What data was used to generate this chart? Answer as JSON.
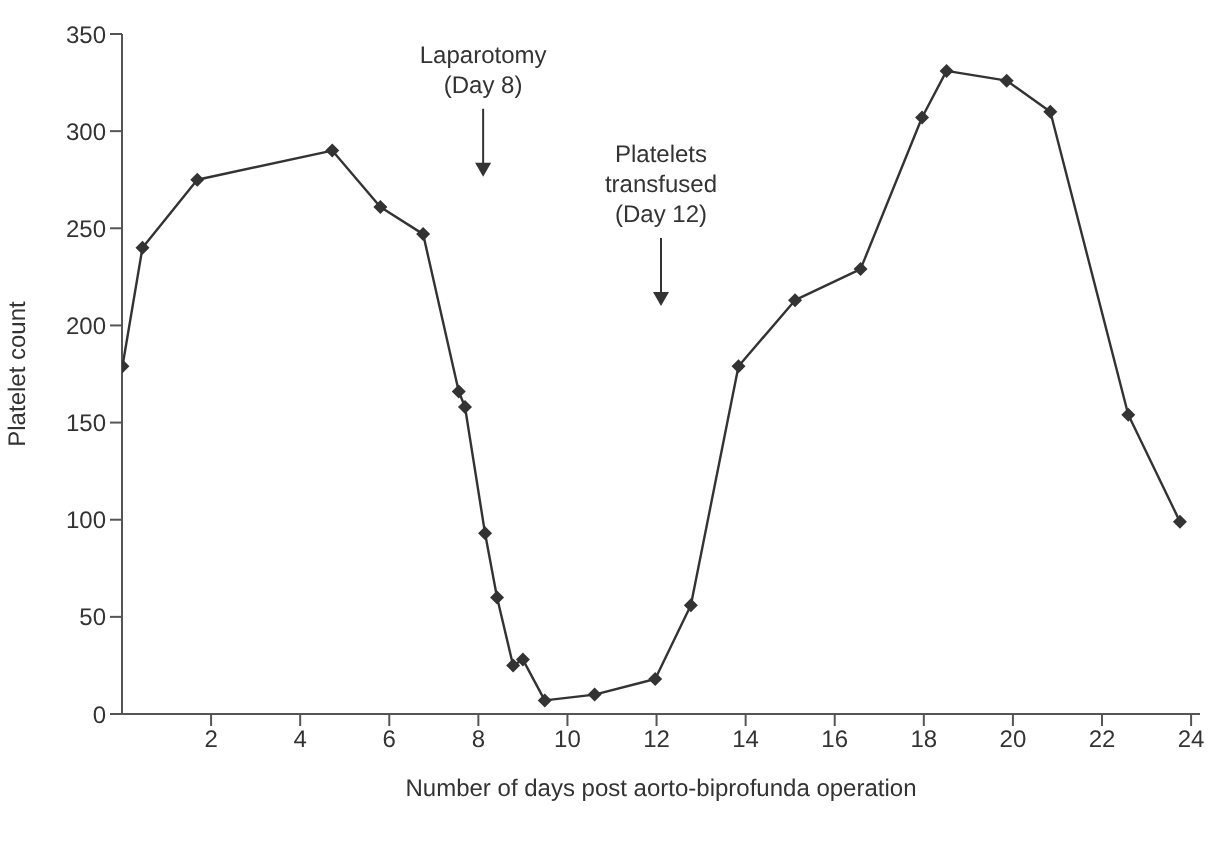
{
  "chart_data": {
    "type": "line",
    "xlabel": "Number of days post aorto-biprofunda operation",
    "ylabel": "Platelet count",
    "x": [
      0.01,
      0.46,
      1.69,
      4.72,
      5.8,
      6.76,
      7.56,
      7.7,
      8.15,
      8.42,
      8.78,
      9.0,
      9.49,
      10.61,
      11.97,
      12.77,
      13.84,
      15.11,
      16.58,
      17.96,
      18.51,
      19.86,
      20.84,
      22.59,
      23.75
    ],
    "series": [
      {
        "color": "#333333",
        "values": [
          179,
          240,
          275,
          290,
          261,
          247,
          166,
          158,
          93,
          60,
          25,
          28,
          7,
          10,
          18,
          56,
          179,
          213,
          229,
          307,
          331,
          326,
          310,
          154,
          99
        ]
      }
    ],
    "xlim": [
      0,
      24.2
    ],
    "xticks": [
      2,
      4,
      6,
      8,
      10,
      12,
      14,
      16,
      18,
      20,
      22,
      24
    ],
    "ylim": [
      0,
      350
    ],
    "yticks": [
      0,
      50,
      100,
      150,
      200,
      250,
      300,
      350
    ],
    "marker": "diamond",
    "line_style": "solid",
    "grid": false,
    "annotations": [
      "Laparotomy\n(Day 8)",
      "Platelets\ntransfused\n(Day 12)"
    ]
  }
}
